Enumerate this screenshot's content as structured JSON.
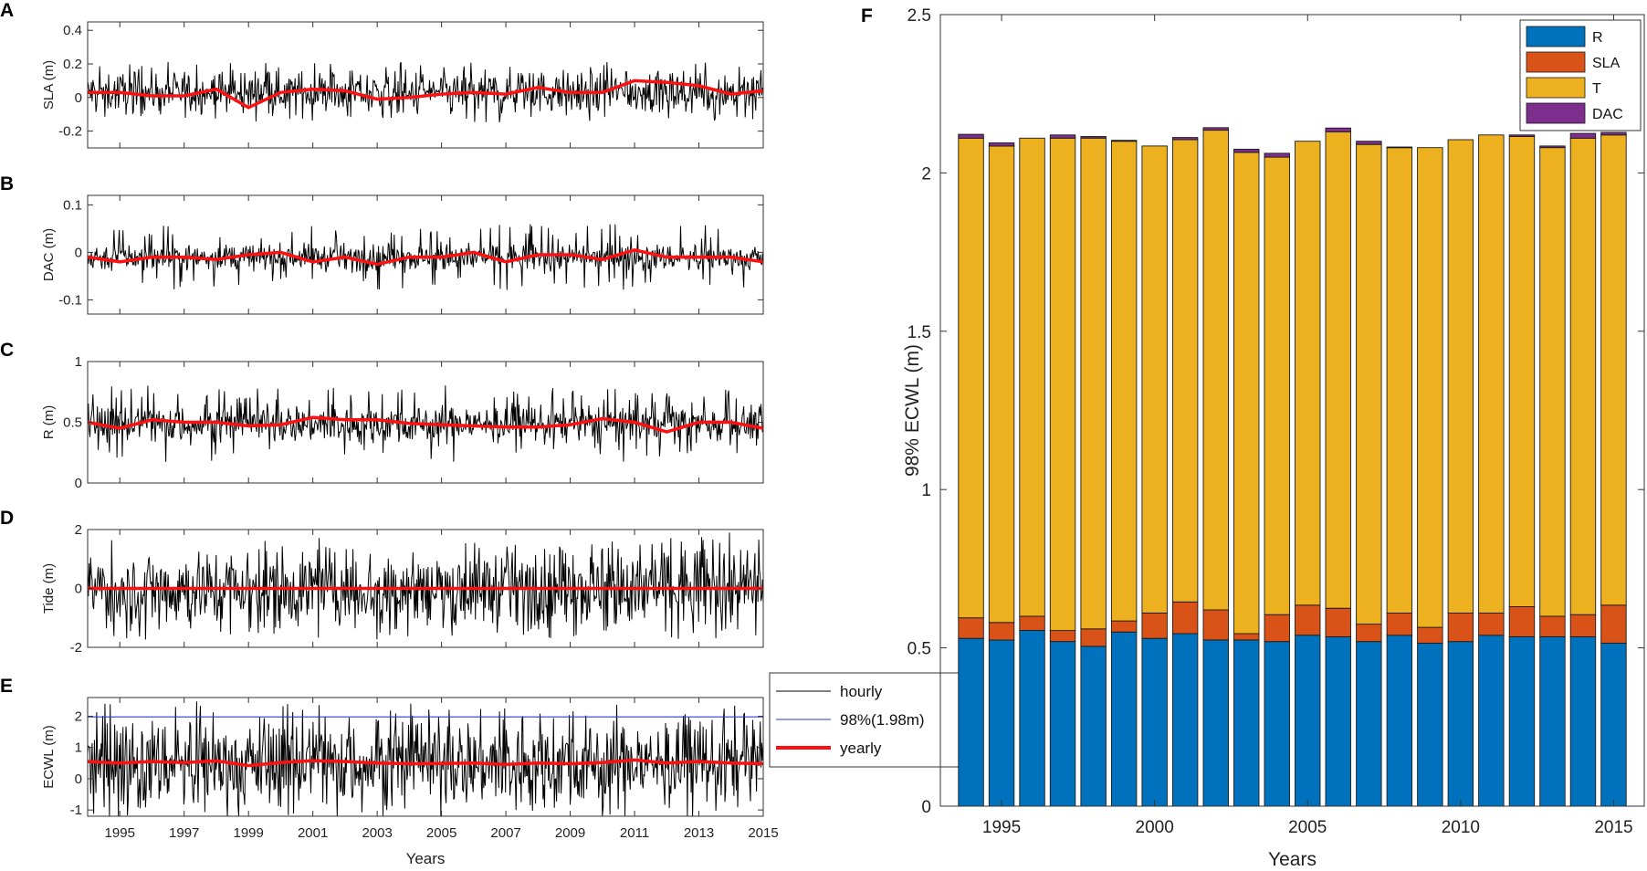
{
  "chart_data": [
    {
      "panel": "A",
      "type": "line",
      "ylabel": "SLA (m)",
      "ylim": [
        -0.3,
        0.45
      ],
      "yticks": [
        -0.2,
        0,
        0.2,
        0.4
      ],
      "ytick_labels": [
        "-0.2",
        "0",
        "0.2",
        "0.4"
      ],
      "xlim": [
        1994,
        2015
      ],
      "hourly_amp": 0.13,
      "hourly_spikes": 0.18,
      "yearly": {
        "x": [
          1994,
          1995,
          1996,
          1997,
          1998,
          1999,
          2000,
          2001,
          2002,
          2003,
          2004,
          2005,
          2006,
          2007,
          2008,
          2009,
          2010,
          2011,
          2012,
          2013,
          2014,
          2015
        ],
        "y": [
          0.03,
          0.03,
          0.01,
          0.01,
          0.05,
          -0.06,
          0.03,
          0.05,
          0.04,
          -0.01,
          0.0,
          0.02,
          0.03,
          0.02,
          0.06,
          0.03,
          0.03,
          0.1,
          0.09,
          0.07,
          0.02,
          0.04
        ]
      }
    },
    {
      "panel": "B",
      "type": "line",
      "ylabel": "DAC (m)",
      "ylim": [
        -0.13,
        0.12
      ],
      "yticks": [
        -0.1,
        0,
        0.1
      ],
      "ytick_labels": [
        "-0.1",
        "0",
        "0.1"
      ],
      "xlim": [
        1994,
        2015
      ],
      "hourly_amp": 0.03,
      "hourly_spikes": 0.07,
      "yearly": {
        "x": [
          1994,
          1995,
          1996,
          1997,
          1998,
          1999,
          2000,
          2001,
          2002,
          2003,
          2004,
          2005,
          2006,
          2007,
          2008,
          2009,
          2010,
          2011,
          2012,
          2013,
          2014,
          2015
        ],
        "y": [
          -0.01,
          -0.02,
          -0.01,
          -0.01,
          -0.015,
          -0.005,
          0.0,
          -0.02,
          -0.01,
          -0.025,
          -0.01,
          -0.01,
          0.0,
          -0.02,
          -0.005,
          -0.005,
          -0.015,
          0.005,
          -0.01,
          -0.01,
          -0.01,
          -0.02
        ]
      }
    },
    {
      "panel": "C",
      "type": "line",
      "ylabel": "R (m)",
      "ylim": [
        0,
        1.0
      ],
      "yticks": [
        0,
        0.5,
        1
      ],
      "ytick_labels": [
        "0",
        "0.5",
        "1"
      ],
      "xlim": [
        1994,
        2015
      ],
      "hourly_amp": 0.17,
      "hourly_spikes": 0.32,
      "yearly": {
        "x": [
          1994,
          1995,
          1996,
          1997,
          1998,
          1999,
          2000,
          2001,
          2002,
          2003,
          2004,
          2005,
          2006,
          2007,
          2008,
          2009,
          2010,
          2011,
          2012,
          2013,
          2014,
          2015
        ],
        "y": [
          0.5,
          0.45,
          0.52,
          0.5,
          0.5,
          0.47,
          0.48,
          0.54,
          0.52,
          0.52,
          0.49,
          0.48,
          0.47,
          0.46,
          0.46,
          0.48,
          0.53,
          0.5,
          0.42,
          0.5,
          0.5,
          0.45
        ]
      }
    },
    {
      "panel": "D",
      "type": "line",
      "ylabel": "Tide (m)",
      "ylim": [
        -2,
        2
      ],
      "yticks": [
        -2,
        0,
        2
      ],
      "ytick_labels": [
        "-2",
        "0",
        "2"
      ],
      "xlim": [
        1994,
        2015
      ],
      "hourly_amp": 1.45,
      "hourly_spikes": 1.75,
      "yearly": {
        "x": [
          1994,
          2015
        ],
        "y": [
          0,
          0
        ]
      }
    },
    {
      "panel": "E",
      "type": "line",
      "ylabel": "ECWL (m)",
      "ylim": [
        -1.2,
        2.6
      ],
      "yticks": [
        -1,
        0,
        1,
        2
      ],
      "ytick_labels": [
        "-1",
        "0",
        "1",
        "2"
      ],
      "xlim": [
        1994,
        2015
      ],
      "xticks": [
        1995,
        1997,
        1999,
        2001,
        2003,
        2005,
        2007,
        2009,
        2011,
        2013,
        2015
      ],
      "xtick_labels": [
        "1995",
        "1997",
        "1999",
        "2001",
        "2003",
        "2005",
        "2007",
        "2009",
        "2011",
        "2013",
        "2015"
      ],
      "xlabel": "Years",
      "hourly_amp": 1.5,
      "hourly_spikes": 1.9,
      "hourly_center": 0.5,
      "threshold": 1.98,
      "yearly": {
        "x": [
          1994,
          1995,
          1996,
          1997,
          1998,
          1999,
          2000,
          2001,
          2002,
          2003,
          2004,
          2005,
          2006,
          2007,
          2008,
          2009,
          2010,
          2011,
          2012,
          2013,
          2014,
          2015
        ],
        "y": [
          0.55,
          0.5,
          0.55,
          0.52,
          0.57,
          0.42,
          0.52,
          0.58,
          0.55,
          0.5,
          0.48,
          0.49,
          0.5,
          0.46,
          0.5,
          0.48,
          0.52,
          0.6,
          0.5,
          0.55,
          0.5,
          0.48
        ]
      },
      "legend": [
        "hourly",
        "98%(1.98m)",
        "yearly"
      ]
    },
    {
      "panel": "F",
      "type": "bar",
      "stacked": true,
      "ylabel": "98% ECWL (m)",
      "xlabel": "Years",
      "ylim": [
        0,
        2.5
      ],
      "yticks": [
        0,
        0.5,
        1,
        1.5,
        2,
        2.5
      ],
      "ytick_labels": [
        "0",
        "0.5",
        "1",
        "1.5",
        "2",
        "2.5"
      ],
      "xticks": [
        1995,
        2000,
        2005,
        2010,
        2015
      ],
      "xtick_labels": [
        "1995",
        "2000",
        "2005",
        "2010",
        "2015"
      ],
      "categories": [
        1994,
        1995,
        1996,
        1997,
        1998,
        1999,
        2000,
        2001,
        2002,
        2003,
        2004,
        2005,
        2006,
        2007,
        2008,
        2009,
        2010,
        2011,
        2012,
        2013,
        2014,
        2015
      ],
      "series": [
        {
          "name": "R",
          "color": "#0072BD",
          "values": [
            0.53,
            0.525,
            0.555,
            0.52,
            0.505,
            0.55,
            0.53,
            0.545,
            0.525,
            0.525,
            0.52,
            0.54,
            0.535,
            0.52,
            0.54,
            0.515,
            0.52,
            0.54,
            0.535,
            0.535,
            0.535,
            0.515
          ]
        },
        {
          "name": "SLA",
          "color": "#D95319",
          "values": [
            0.065,
            0.055,
            0.045,
            0.035,
            0.055,
            0.035,
            0.08,
            0.1,
            0.095,
            0.02,
            0.085,
            0.095,
            0.09,
            0.055,
            0.07,
            0.05,
            0.09,
            0.07,
            0.095,
            0.065,
            0.07,
            0.12
          ]
        },
        {
          "name": "T",
          "color": "#EDB120",
          "values": [
            1.515,
            1.505,
            1.51,
            1.555,
            1.55,
            1.515,
            1.475,
            1.46,
            1.515,
            1.52,
            1.445,
            1.465,
            1.505,
            1.515,
            1.47,
            1.515,
            1.495,
            1.51,
            1.485,
            1.48,
            1.505,
            1.485
          ]
        },
        {
          "name": "DAC",
          "color": "#7E2F8E",
          "values": [
            0.012,
            0.01,
            0.0,
            0.01,
            0.005,
            0.003,
            0.0,
            0.007,
            0.008,
            0.01,
            0.012,
            0.0,
            0.012,
            0.01,
            0.002,
            0.0,
            0.0,
            0.0,
            0.005,
            0.005,
            0.015,
            0.008
          ]
        }
      ]
    }
  ]
}
